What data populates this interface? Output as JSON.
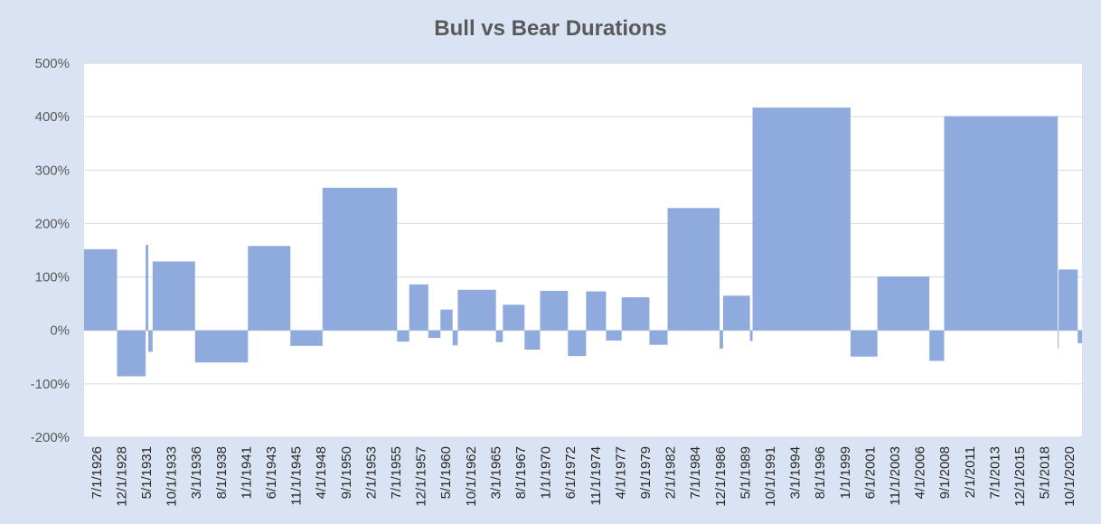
{
  "chart_data": {
    "type": "bar",
    "title": "Bull vs Bear Durations",
    "xlabel": "",
    "ylabel": "",
    "ylim": [
      -200,
      500
    ],
    "y_tick_values": [
      -200,
      -100,
      0,
      100,
      200,
      300,
      400,
      500
    ],
    "y_tick_labels": [
      "-200%",
      "-100%",
      "0%",
      "100%",
      "200%",
      "300%",
      "400%",
      "500%"
    ],
    "x_tick_labels": [
      "7/1/1926",
      "12/1/1928",
      "5/1/1931",
      "10/1/1933",
      "3/1/1936",
      "8/1/1938",
      "1/1/1941",
      "6/1/1943",
      "11/1/1945",
      "4/1/1948",
      "9/1/1950",
      "2/1/1953",
      "7/1/1955",
      "12/1/1957",
      "5/1/1960",
      "10/1/1962",
      "3/1/1965",
      "8/1/1967",
      "1/1/1970",
      "6/1/1972",
      "11/1/1974",
      "4/1/1977",
      "9/1/1979",
      "2/1/1982",
      "7/1/1984",
      "12/1/1986",
      "5/1/1989",
      "10/1/1991",
      "3/1/1994",
      "8/1/1996",
      "1/1/1999",
      "6/1/2001",
      "11/1/2003",
      "4/1/2006",
      "9/1/2008",
      "2/1/2011",
      "7/1/2013",
      "12/1/2015",
      "5/1/2018",
      "10/1/2020"
    ],
    "x_start": "1926-07-01",
    "x_end": "2022-06-01",
    "grid": true,
    "legend": "none",
    "bar_color": "#8faadc",
    "series": [
      {
        "values": [
          {
            "start": "1926-07-01",
            "end": "1929-09-01",
            "value": 152
          },
          {
            "start": "1929-09-01",
            "end": "1932-06-01",
            "value": -86
          },
          {
            "start": "1932-06-01",
            "end": "1932-09-01",
            "value": 160
          },
          {
            "start": "1932-09-01",
            "end": "1933-02-01",
            "value": -40
          },
          {
            "start": "1933-02-01",
            "end": "1937-03-01",
            "value": 129
          },
          {
            "start": "1937-03-01",
            "end": "1942-04-01",
            "value": -60
          },
          {
            "start": "1942-04-01",
            "end": "1946-05-01",
            "value": 158
          },
          {
            "start": "1946-05-01",
            "end": "1949-06-01",
            "value": -29
          },
          {
            "start": "1949-06-01",
            "end": "1956-08-01",
            "value": 267
          },
          {
            "start": "1956-08-01",
            "end": "1957-10-01",
            "value": -21
          },
          {
            "start": "1957-10-01",
            "end": "1959-08-01",
            "value": 86
          },
          {
            "start": "1959-08-01",
            "end": "1960-10-01",
            "value": -14
          },
          {
            "start": "1960-10-01",
            "end": "1961-12-01",
            "value": 39
          },
          {
            "start": "1961-12-01",
            "end": "1962-06-01",
            "value": -28
          },
          {
            "start": "1962-06-01",
            "end": "1966-02-01",
            "value": 76
          },
          {
            "start": "1966-02-01",
            "end": "1966-10-01",
            "value": -22
          },
          {
            "start": "1966-10-01",
            "end": "1968-11-01",
            "value": 48
          },
          {
            "start": "1968-11-01",
            "end": "1970-05-01",
            "value": -36
          },
          {
            "start": "1970-05-01",
            "end": "1973-01-01",
            "value": 74
          },
          {
            "start": "1973-01-01",
            "end": "1974-10-01",
            "value": -48
          },
          {
            "start": "1974-10-01",
            "end": "1976-09-01",
            "value": 73
          },
          {
            "start": "1976-09-01",
            "end": "1978-03-01",
            "value": -19
          },
          {
            "start": "1978-03-01",
            "end": "1980-11-01",
            "value": 62
          },
          {
            "start": "1980-11-01",
            "end": "1982-08-01",
            "value": -27
          },
          {
            "start": "1982-08-01",
            "end": "1987-08-01",
            "value": 229
          },
          {
            "start": "1987-08-01",
            "end": "1987-12-01",
            "value": -34
          },
          {
            "start": "1987-12-01",
            "end": "1990-07-01",
            "value": 65
          },
          {
            "start": "1990-07-01",
            "end": "1990-10-01",
            "value": -20
          },
          {
            "start": "1990-10-01",
            "end": "2000-03-01",
            "value": 417
          },
          {
            "start": "2000-03-01",
            "end": "2002-10-01",
            "value": -49
          },
          {
            "start": "2002-10-01",
            "end": "2007-10-01",
            "value": 101
          },
          {
            "start": "2007-10-01",
            "end": "2009-03-01",
            "value": -57
          },
          {
            "start": "2009-03-01",
            "end": "2020-02-01",
            "value": 401
          },
          {
            "start": "2020-02-01",
            "end": "2020-03-01",
            "value": -34
          },
          {
            "start": "2020-03-01",
            "end": "2022-01-01",
            "value": 114
          },
          {
            "start": "2022-01-01",
            "end": "2022-06-01",
            "value": -24
          }
        ]
      }
    ]
  }
}
